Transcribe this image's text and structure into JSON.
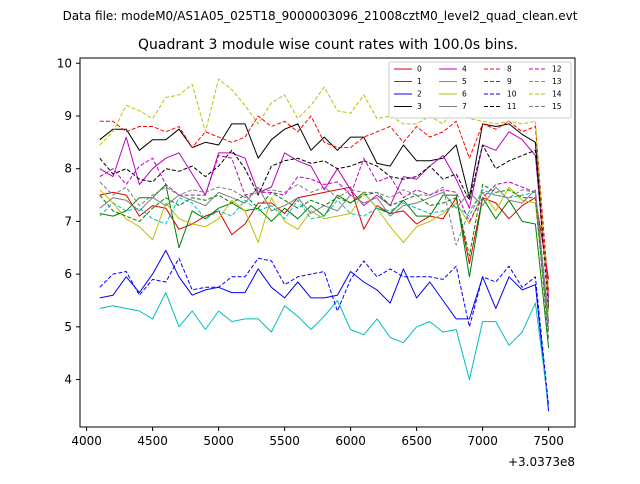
{
  "chart_data": {
    "type": "line",
    "suptitle": "Data file: modeM0/AS1A05_025T18_9000003096_21008cztM0_level2_quad_clean.evt",
    "title": "Quadrant 3 module wise count rates with 100.0s bins.",
    "xlabel": "",
    "ylabel": "",
    "x_offset_label": "+3.0373e8",
    "xlim": [
      3950,
      7700
    ],
    "ylim": [
      3.1,
      10.1
    ],
    "xticks": [
      4000,
      4500,
      5000,
      5500,
      6000,
      6500,
      7000,
      7500
    ],
    "yticks": [
      4,
      5,
      6,
      7,
      8,
      9,
      10
    ],
    "x": [
      4100,
      4200,
      4300,
      4400,
      4500,
      4600,
      4700,
      4800,
      4900,
      5000,
      5100,
      5200,
      5300,
      5400,
      5500,
      5600,
      5700,
      5800,
      5900,
      6000,
      6100,
      6200,
      6300,
      6400,
      6500,
      6600,
      6700,
      6800,
      6900,
      7000,
      7100,
      7200,
      7300,
      7400,
      7500
    ],
    "legend_location": "upper right",
    "series": [
      {
        "name": "0",
        "color": "#e00000",
        "style": "solid",
        "values": [
          7.5,
          7.55,
          7.5,
          7.1,
          7.3,
          7.25,
          6.85,
          6.95,
          7.1,
          7.2,
          6.75,
          6.95,
          7.35,
          7.35,
          7.15,
          7.45,
          7.5,
          7.55,
          7.6,
          7.65,
          6.85,
          7.3,
          7.15,
          7.2,
          6.95,
          7.1,
          7.05,
          7.45,
          6.2,
          7.45,
          7.35,
          7.05,
          7.3,
          7.45,
          5.9
        ]
      },
      {
        "name": "1",
        "color": "#008000",
        "style": "solid",
        "values": [
          7.15,
          7.1,
          7.2,
          7.45,
          7.45,
          7.7,
          6.5,
          7.2,
          7.05,
          7.25,
          7.35,
          7.2,
          7.25,
          7.0,
          7.25,
          7.05,
          7.3,
          7.1,
          7.5,
          7.35,
          7.55,
          7.25,
          7.15,
          7.4,
          7.1,
          7.1,
          7.5,
          7.5,
          5.95,
          7.45,
          7.05,
          7.4,
          7.0,
          6.95,
          4.6
        ]
      },
      {
        "name": "2",
        "color": "#0000ff",
        "style": "solid",
        "values": [
          5.55,
          5.6,
          5.95,
          5.65,
          6.0,
          6.45,
          5.95,
          5.6,
          5.7,
          5.75,
          5.65,
          5.65,
          6.1,
          5.75,
          5.55,
          5.85,
          5.55,
          5.55,
          5.6,
          6.05,
          5.85,
          5.7,
          5.45,
          6.1,
          5.55,
          5.85,
          5.5,
          5.15,
          5.15,
          5.95,
          5.35,
          5.95,
          5.7,
          5.8,
          3.4
        ]
      },
      {
        "name": "3",
        "color": "#000000",
        "style": "solid",
        "values": [
          8.55,
          8.75,
          8.75,
          8.35,
          8.55,
          8.55,
          8.75,
          8.4,
          8.5,
          8.45,
          8.85,
          8.85,
          8.2,
          8.55,
          8.75,
          8.85,
          8.35,
          8.6,
          8.35,
          8.6,
          8.6,
          8.1,
          8.05,
          8.45,
          8.15,
          8.15,
          8.2,
          8.45,
          7.45,
          8.85,
          8.8,
          8.85,
          8.65,
          8.5,
          5.4
        ]
      },
      {
        "name": "4",
        "color": "#bf00bf",
        "style": "solid",
        "values": [
          8.0,
          7.85,
          8.6,
          7.7,
          8.0,
          8.2,
          8.3,
          7.9,
          7.5,
          8.3,
          8.3,
          8.2,
          7.55,
          7.65,
          8.3,
          8.15,
          8.05,
          7.6,
          8.0,
          7.6,
          7.3,
          7.5,
          7.3,
          7.85,
          7.8,
          8.05,
          8.25,
          7.8,
          7.25,
          8.45,
          8.35,
          8.7,
          8.55,
          8.25,
          5.55
        ]
      },
      {
        "name": "5",
        "color": "#00bfbf",
        "style": "solid",
        "values": [
          5.35,
          5.4,
          5.35,
          5.3,
          5.15,
          5.65,
          5.0,
          5.3,
          4.95,
          5.3,
          5.1,
          5.15,
          5.15,
          4.9,
          5.4,
          5.2,
          4.95,
          5.2,
          5.5,
          4.95,
          4.85,
          5.15,
          4.8,
          4.7,
          5.0,
          5.1,
          4.9,
          4.95,
          4.0,
          5.1,
          5.1,
          4.65,
          4.9,
          5.45,
          3.5
        ]
      },
      {
        "name": "6",
        "color": "#bfbf00",
        "style": "solid",
        "values": [
          7.6,
          7.35,
          7.05,
          6.9,
          6.65,
          7.35,
          7.05,
          6.95,
          6.9,
          7.05,
          7.4,
          7.2,
          6.6,
          7.45,
          7.0,
          6.85,
          7.2,
          7.05,
          7.1,
          7.15,
          7.55,
          7.25,
          6.9,
          6.6,
          6.9,
          7.0,
          7.15,
          7.35,
          6.95,
          7.55,
          7.2,
          7.65,
          7.4,
          7.35,
          4.9
        ]
      },
      {
        "name": "7",
        "color": "#7f7f7f",
        "style": "solid",
        "values": [
          7.25,
          7.45,
          7.4,
          7.2,
          7.45,
          7.3,
          7.5,
          7.4,
          7.3,
          7.55,
          7.45,
          7.35,
          7.65,
          7.2,
          7.3,
          7.45,
          7.15,
          7.3,
          7.2,
          7.5,
          7.35,
          7.45,
          7.1,
          7.3,
          7.35,
          7.45,
          7.55,
          7.25,
          7.55,
          7.3,
          7.65,
          7.4,
          7.35,
          7.6,
          5.1
        ]
      },
      {
        "name": "8",
        "color": "#ff0000",
        "style": "dashed",
        "values": [
          8.9,
          8.9,
          8.7,
          8.8,
          8.8,
          8.7,
          8.8,
          8.4,
          8.7,
          8.6,
          8.5,
          8.6,
          9.0,
          8.8,
          8.9,
          8.7,
          9.0,
          8.5,
          8.4,
          8.4,
          8.6,
          8.7,
          8.8,
          8.5,
          8.8,
          8.6,
          8.7,
          8.9,
          8.2,
          8.85,
          8.75,
          8.9,
          8.7,
          8.8,
          5.65
        ]
      },
      {
        "name": "9",
        "color": "#008000",
        "style": "dashed",
        "values": [
          7.5,
          7.2,
          7.1,
          7.0,
          7.25,
          7.45,
          7.3,
          7.45,
          7.4,
          7.5,
          7.35,
          7.5,
          7.25,
          7.55,
          7.4,
          7.25,
          7.4,
          7.3,
          7.45,
          7.35,
          7.5,
          7.55,
          7.3,
          7.4,
          7.5,
          7.3,
          7.35,
          7.45,
          6.35,
          7.7,
          7.55,
          7.6,
          7.45,
          7.45,
          4.75
        ]
      },
      {
        "name": "10",
        "color": "#0000ff",
        "style": "dashed",
        "values": [
          5.75,
          6.0,
          6.05,
          5.6,
          5.9,
          5.85,
          6.3,
          5.7,
          5.75,
          5.75,
          5.95,
          5.95,
          6.3,
          6.25,
          5.8,
          5.95,
          6.0,
          6.05,
          5.3,
          5.9,
          6.25,
          5.95,
          6.1,
          5.95,
          5.95,
          5.95,
          5.9,
          6.15,
          5.0,
          5.95,
          5.85,
          6.15,
          5.75,
          5.95,
          3.5
        ]
      },
      {
        "name": "11",
        "color": "#000000",
        "style": "dashed",
        "values": [
          8.2,
          7.9,
          8.0,
          7.8,
          7.75,
          8.0,
          7.95,
          8.05,
          7.85,
          8.05,
          8.35,
          8.0,
          7.5,
          8.05,
          8.15,
          8.2,
          8.1,
          8.15,
          8.0,
          8.05,
          8.15,
          8.05,
          7.85,
          7.8,
          7.85,
          8.05,
          7.8,
          7.9,
          7.4,
          8.45,
          8.0,
          8.15,
          8.25,
          8.35,
          5.3
        ]
      },
      {
        "name": "12",
        "color": "#bf00bf",
        "style": "dashed",
        "values": [
          7.85,
          8.0,
          7.7,
          8.05,
          8.2,
          7.7,
          7.5,
          7.5,
          7.5,
          8.25,
          8.2,
          7.5,
          7.55,
          7.55,
          7.5,
          7.85,
          7.8,
          7.7,
          7.75,
          7.5,
          8.2,
          7.75,
          7.85,
          7.45,
          7.6,
          7.5,
          7.6,
          7.55,
          7.0,
          7.45,
          7.7,
          7.75,
          7.65,
          7.55,
          5.0
        ]
      },
      {
        "name": "13",
        "color": "#00bfbf",
        "style": "dashed",
        "values": [
          7.1,
          7.35,
          7.2,
          7.25,
          7.05,
          6.95,
          7.45,
          7.35,
          7.05,
          7.2,
          7.1,
          7.4,
          7.2,
          7.3,
          7.05,
          7.4,
          7.05,
          7.1,
          7.4,
          7.15,
          7.1,
          7.25,
          7.2,
          7.35,
          7.25,
          7.15,
          7.2,
          7.3,
          7.1,
          7.6,
          7.5,
          7.45,
          7.5,
          7.55,
          4.9
        ]
      },
      {
        "name": "14",
        "color": "#bfbf00",
        "style": "dashed",
        "values": [
          8.45,
          8.7,
          9.2,
          9.1,
          8.95,
          9.35,
          9.4,
          9.6,
          8.7,
          9.7,
          9.5,
          9.2,
          8.85,
          9.25,
          9.4,
          8.95,
          9.2,
          9.55,
          9.1,
          9.05,
          9.4,
          8.95,
          9.0,
          8.85,
          8.85,
          9.0,
          8.85,
          9.2,
          8.95,
          8.9,
          8.85,
          8.9,
          8.85,
          8.9,
          5.25
        ]
      },
      {
        "name": "15",
        "color": "#7f7f7f",
        "style": "dashed",
        "values": [
          7.75,
          7.5,
          7.65,
          7.3,
          7.5,
          7.65,
          7.5,
          7.6,
          7.55,
          7.65,
          7.6,
          7.45,
          7.55,
          7.6,
          7.55,
          7.7,
          7.55,
          7.65,
          7.45,
          7.6,
          7.55,
          7.55,
          7.45,
          7.6,
          7.5,
          7.5,
          7.65,
          6.55,
          7.2,
          7.55,
          7.5,
          7.45,
          7.6,
          7.55,
          4.9
        ]
      }
    ]
  }
}
